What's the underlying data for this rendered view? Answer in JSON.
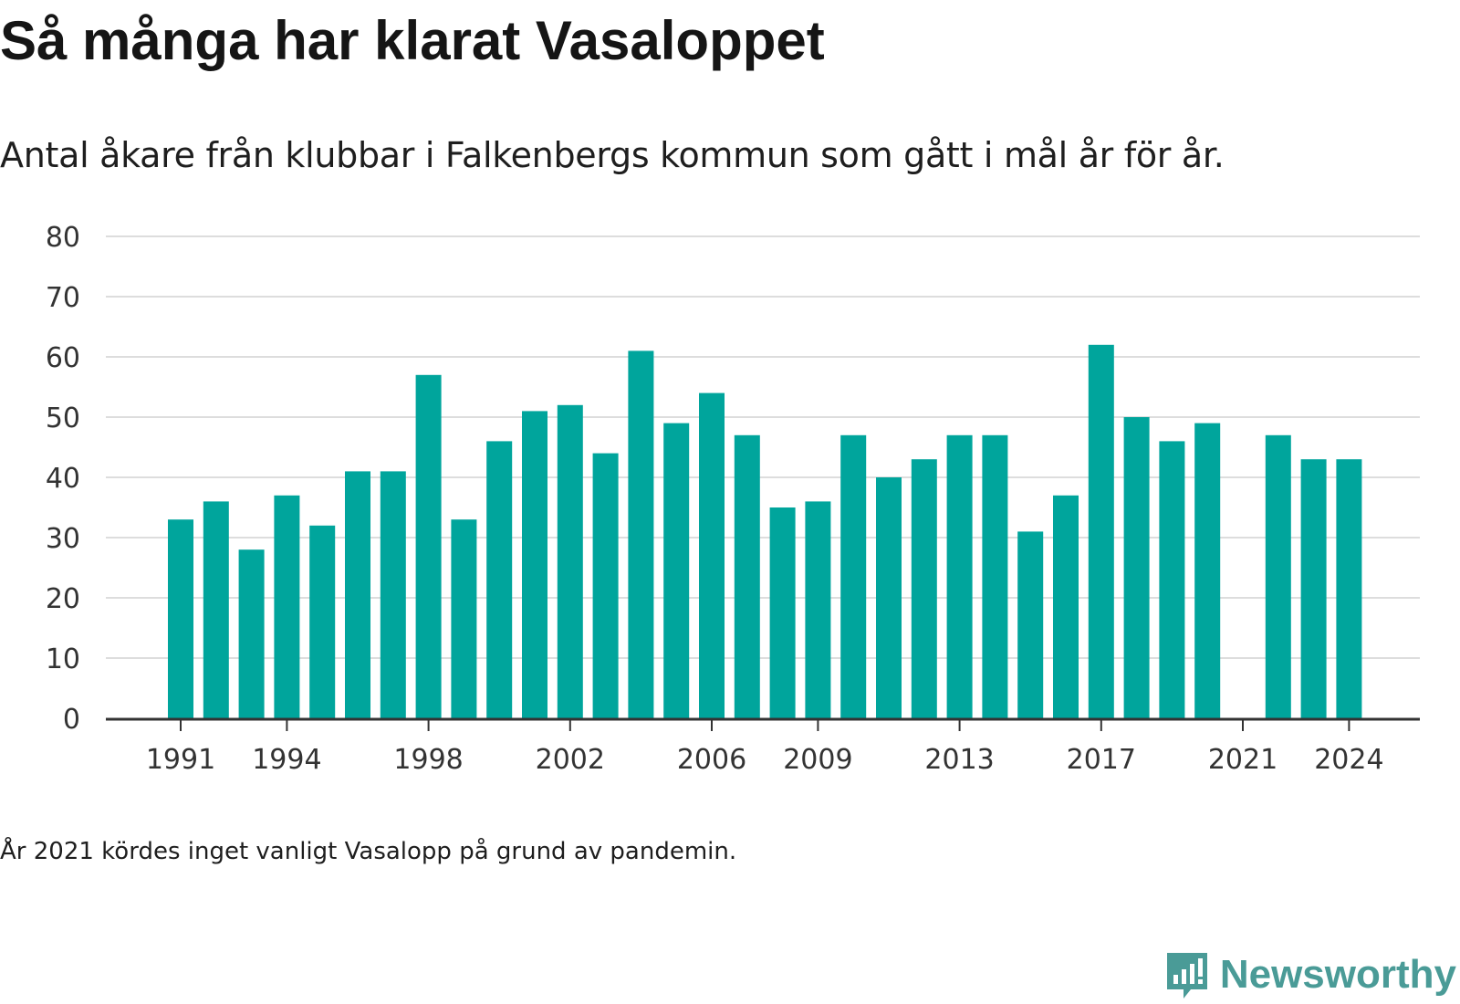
{
  "title": "Så många har klarat Vasaloppet",
  "subtitle": "Antal åkare från klubbar i Falkenbergs kommun som gått i mål år för år.",
  "note": "År 2021 kördes inget vanligt Vasalopp på grund av pandemin.",
  "brand": {
    "name": "Newsworthy",
    "logo_icon": "bar-chart-speech-bubble-icon",
    "color": "#4a9b97"
  },
  "chart_data": {
    "type": "bar",
    "categories": [
      "1991",
      "1992",
      "1993",
      "1994",
      "1995",
      "1996",
      "1997",
      "1998",
      "1999",
      "2000",
      "2001",
      "2002",
      "2003",
      "2004",
      "2005",
      "2006",
      "2007",
      "2008",
      "2009",
      "2010",
      "2011",
      "2012",
      "2013",
      "2014",
      "2015",
      "2016",
      "2017",
      "2018",
      "2019",
      "2020",
      "2021",
      "2022",
      "2023",
      "2024"
    ],
    "values": [
      33,
      36,
      28,
      37,
      32,
      41,
      41,
      57,
      33,
      46,
      51,
      52,
      44,
      61,
      49,
      54,
      47,
      35,
      36,
      47,
      40,
      43,
      47,
      47,
      31,
      37,
      62,
      50,
      46,
      49,
      null,
      47,
      43,
      43
    ],
    "x_tick_labels": [
      "1991",
      "1994",
      "1998",
      "2002",
      "2006",
      "2009",
      "2013",
      "2017",
      "2021",
      "2024"
    ],
    "y_ticks": [
      0,
      10,
      20,
      30,
      40,
      50,
      60,
      70,
      80
    ],
    "ylim": [
      0,
      80
    ],
    "grid": true,
    "bar_color": "#00a59c",
    "xlabel": "",
    "ylabel": ""
  }
}
